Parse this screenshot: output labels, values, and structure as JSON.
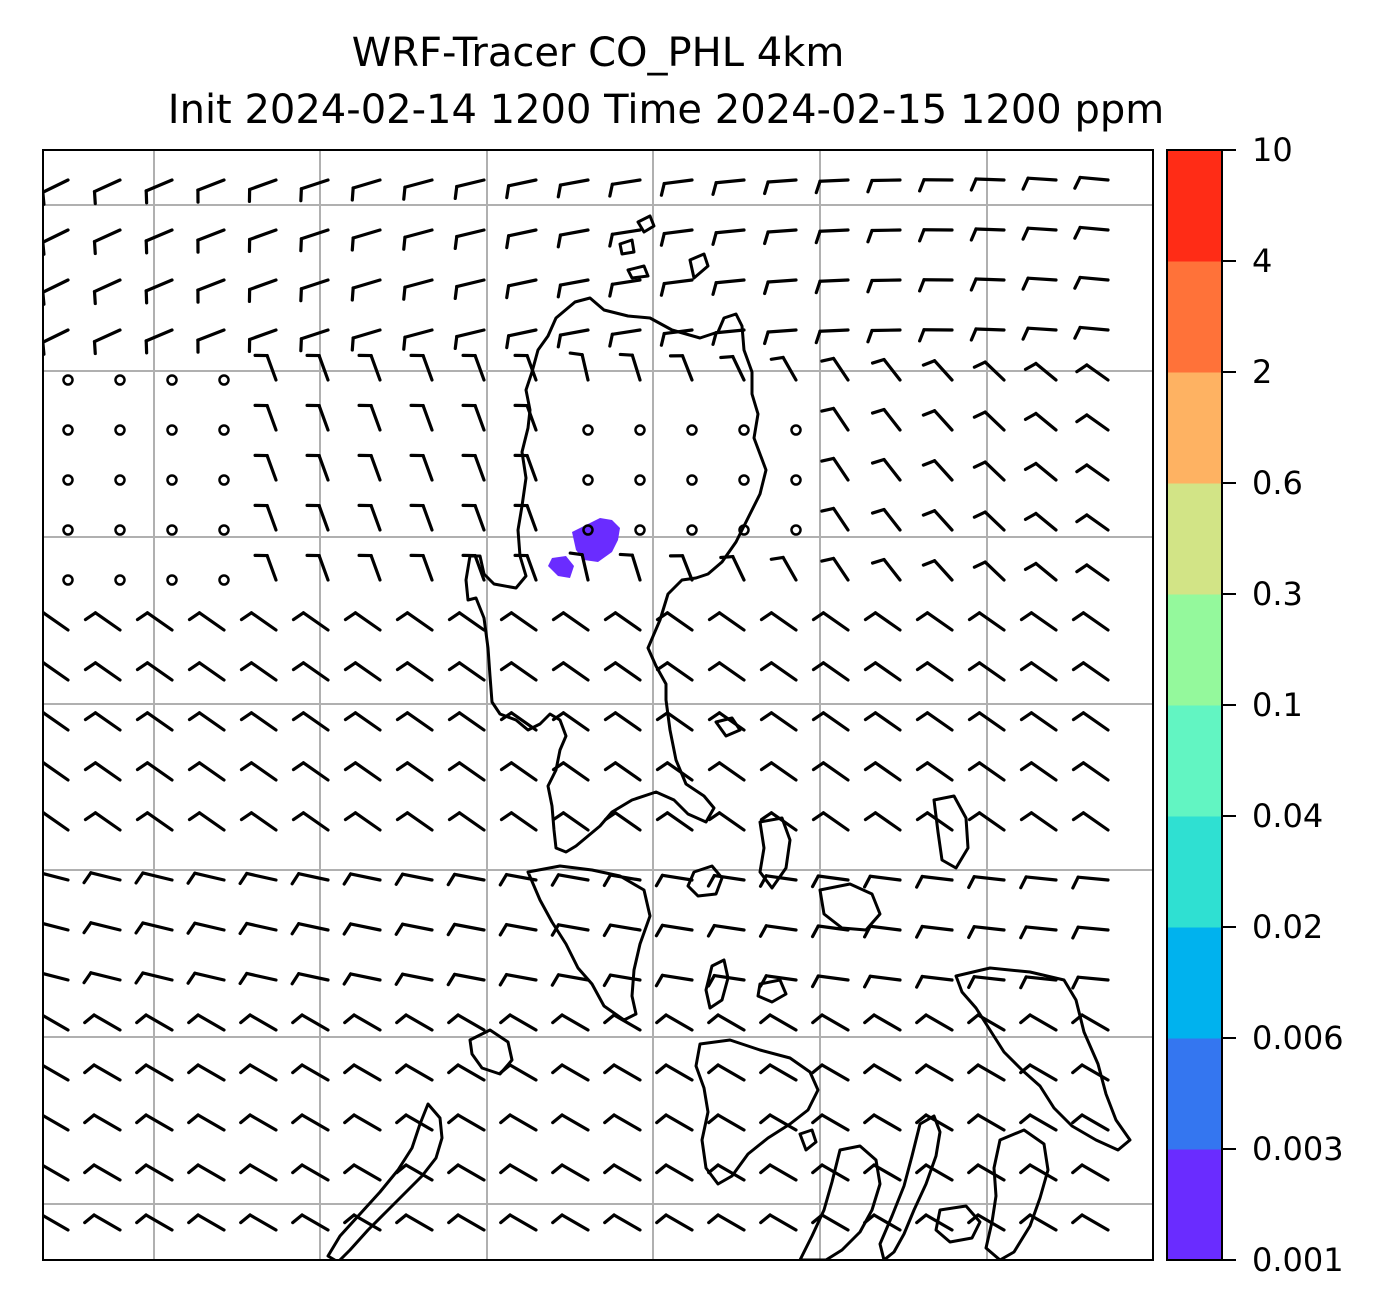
{
  "title": {
    "line1": "WRF-Tracer CO_PHL 4km",
    "line2": "Init 2024-02-14 1200 Time 2024-02-15 1200 ppm"
  },
  "colorbar": {
    "ticks": [
      "0.001",
      "0.003",
      "0.006",
      "0.02",
      "0.04",
      "0.1",
      "0.3",
      "0.6",
      "2",
      "4",
      "10"
    ],
    "colors": [
      "#6a2cff",
      "#3476f0",
      "#00b2ee",
      "#2fe0d2",
      "#62f5c2",
      "#94f99c",
      "#d2e486",
      "#feb262",
      "#ff7239",
      "#ff2c16"
    ]
  },
  "map": {
    "gridline_color": "#b0b0b0",
    "coastline_color": "#000000",
    "tracer_plume_color": "#6a2cff"
  }
}
